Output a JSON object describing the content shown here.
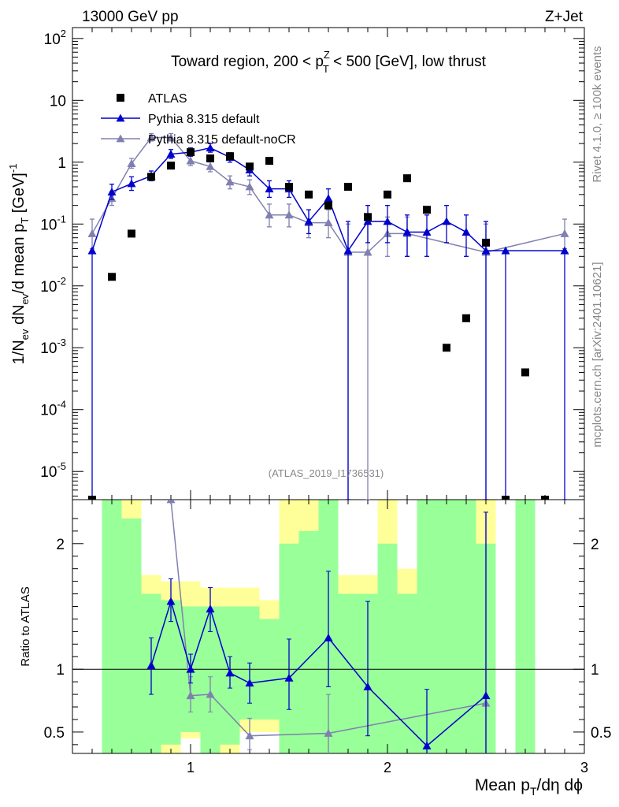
{
  "header": {
    "energy_label": "13000 GeV pp",
    "process_label": "Z+Jet",
    "plot_title": "Toward region, 200 < p_T^Z < 500 [GeV], low thrust",
    "watermark": "(ATLAS_2019_I1736531)",
    "side_rivet": "Rivet 4.1.0, ≥ 100k events",
    "side_mcplots": "mcplots.cern.ch [arXiv:2401.10621]"
  },
  "colors": {
    "data": "#000000",
    "default": "#0000cc",
    "nocr": "#8080b0",
    "band_inner": "#99ff99",
    "band_outer": "#ffff99"
  },
  "chart_data": [
    {
      "type": "scatter",
      "panel": "main",
      "ylabel": "1/N_ev dN_ev/d mean p_T [GeV]^-1",
      "yscale": "log",
      "xlim": [
        0.4,
        3.0
      ],
      "ylim": [
        3.5e-06,
        150
      ],
      "x_ticks": [
        "1",
        "2",
        "3"
      ],
      "y_ticks": [
        "10^-5",
        "10^-4",
        "10^-3",
        "10^-2",
        "10^-1",
        "1",
        "10",
        "10^2"
      ],
      "legend": [
        "ATLAS",
        "Pythia 8.315 default",
        "Pythia 8.315 default-noCR"
      ],
      "series": [
        {
          "name": "ATLAS",
          "style": "markers",
          "points": [
            {
              "x": 0.5,
              "y": 3.5e-06
            },
            {
              "x": 0.6,
              "y": 0.014
            },
            {
              "x": 0.7,
              "y": 0.07
            },
            {
              "x": 0.8,
              "y": 0.58
            },
            {
              "x": 0.9,
              "y": 0.88
            },
            {
              "x": 1.0,
              "y": 1.45
            },
            {
              "x": 1.1,
              "y": 1.15
            },
            {
              "x": 1.2,
              "y": 1.25
            },
            {
              "x": 1.3,
              "y": 0.85
            },
            {
              "x": 1.4,
              "y": 1.05
            },
            {
              "x": 1.5,
              "y": 0.4
            },
            {
              "x": 1.6,
              "y": 0.3
            },
            {
              "x": 1.7,
              "y": 0.2
            },
            {
              "x": 1.8,
              "y": 0.4
            },
            {
              "x": 1.9,
              "y": 0.13
            },
            {
              "x": 2.0,
              "y": 0.3
            },
            {
              "x": 2.1,
              "y": 0.55
            },
            {
              "x": 2.2,
              "y": 0.17
            },
            {
              "x": 2.3,
              "y": 0.001
            },
            {
              "x": 2.4,
              "y": 0.003
            },
            {
              "x": 2.5,
              "y": 0.05
            },
            {
              "x": 2.6,
              "y": 3.5e-06
            },
            {
              "x": 2.7,
              "y": 0.0004
            },
            {
              "x": 2.8,
              "y": 3.5e-06
            }
          ]
        },
        {
          "name": "Pythia 8.315 default",
          "style": "line-triangles",
          "points": [
            {
              "x": 0.5,
              "y": 0.037,
              "lo": 3.5e-06,
              "hi": 0.037
            },
            {
              "x": 0.6,
              "y": 0.33,
              "lo": 0.25,
              "hi": 0.44
            },
            {
              "x": 0.7,
              "y": 0.45,
              "lo": 0.35,
              "hi": 0.58
            },
            {
              "x": 0.8,
              "y": 0.6,
              "lo": 0.5,
              "hi": 0.72
            },
            {
              "x": 0.9,
              "y": 1.35,
              "lo": 1.15,
              "hi": 1.6
            },
            {
              "x": 1.0,
              "y": 1.45,
              "lo": 1.25,
              "hi": 1.7
            },
            {
              "x": 1.1,
              "y": 1.7,
              "lo": 1.45,
              "hi": 2.0
            },
            {
              "x": 1.2,
              "y": 1.2,
              "lo": 1.0,
              "hi": 1.42
            },
            {
              "x": 1.3,
              "y": 0.75,
              "lo": 0.6,
              "hi": 0.93
            },
            {
              "x": 1.4,
              "y": 0.37,
              "lo": 0.27,
              "hi": 0.5
            },
            {
              "x": 1.5,
              "y": 0.37,
              "lo": 0.27,
              "hi": 0.5
            },
            {
              "x": 1.6,
              "y": 0.11,
              "lo": 0.07,
              "hi": 0.17
            },
            {
              "x": 1.7,
              "y": 0.26,
              "lo": 0.18,
              "hi": 0.37
            },
            {
              "x": 1.8,
              "y": 0.037,
              "lo": 3.5e-06,
              "hi": 0.11
            },
            {
              "x": 1.9,
              "y": 0.11,
              "lo": 0.05,
              "hi": 0.2
            },
            {
              "x": 2.0,
              "y": 0.11,
              "lo": 0.05,
              "hi": 0.2
            },
            {
              "x": 2.1,
              "y": 0.074,
              "lo": 0.03,
              "hi": 0.14
            },
            {
              "x": 2.2,
              "y": 0.074,
              "lo": 0.03,
              "hi": 0.14
            },
            {
              "x": 2.3,
              "y": 0.11,
              "lo": 0.05,
              "hi": 0.2
            },
            {
              "x": 2.4,
              "y": 0.074,
              "lo": 0.03,
              "hi": 0.14
            },
            {
              "x": 2.5,
              "y": 0.037,
              "lo": 3.5e-06,
              "hi": 0.11
            },
            {
              "x": 2.6,
              "y": 0.037,
              "lo": 3.5e-06,
              "hi": 0.037
            },
            {
              "x": 2.9,
              "y": 0.037,
              "lo": 3.5e-06,
              "hi": 0.037
            }
          ]
        },
        {
          "name": "Pythia 8.315 default-noCR",
          "style": "line-triangles",
          "points": [
            {
              "x": 0.5,
              "y": 0.07,
              "lo": 0.04,
              "hi": 0.12
            },
            {
              "x": 0.6,
              "y": 0.26,
              "lo": 0.2,
              "hi": 0.34
            },
            {
              "x": 0.7,
              "y": 0.95,
              "lo": 0.8,
              "hi": 1.15
            },
            {
              "x": 0.8,
              "y": 2.5,
              "lo": 2.2,
              "hi": 2.9
            },
            {
              "x": 0.9,
              "y": 2.5,
              "lo": 2.2,
              "hi": 2.9
            },
            {
              "x": 1.0,
              "y": 1.05,
              "lo": 0.88,
              "hi": 1.25
            },
            {
              "x": 1.1,
              "y": 0.85,
              "lo": 0.7,
              "hi": 1.02
            },
            {
              "x": 1.2,
              "y": 0.48,
              "lo": 0.37,
              "hi": 0.6
            },
            {
              "x": 1.3,
              "y": 0.4,
              "lo": 0.3,
              "hi": 0.52
            },
            {
              "x": 1.4,
              "y": 0.14,
              "lo": 0.09,
              "hi": 0.21
            },
            {
              "x": 1.5,
              "y": 0.14,
              "lo": 0.09,
              "hi": 0.21
            },
            {
              "x": 1.6,
              "y": 0.105,
              "lo": 0.06,
              "hi": 0.17
            },
            {
              "x": 1.7,
              "y": 0.105,
              "lo": 0.06,
              "hi": 0.17
            },
            {
              "x": 1.8,
              "y": 0.035,
              "lo": 3.5e-06,
              "hi": 0.1
            },
            {
              "x": 1.9,
              "y": 0.035,
              "lo": 3.5e-06,
              "hi": 0.1
            },
            {
              "x": 2.0,
              "y": 0.07,
              "lo": 0.03,
              "hi": 0.13
            },
            {
              "x": 2.1,
              "y": 0.07,
              "lo": 0.03,
              "hi": 0.13
            },
            {
              "x": 2.5,
              "y": 0.035,
              "lo": 3.5e-06,
              "hi": 0.1
            },
            {
              "x": 2.9,
              "y": 0.07,
              "lo": 0.04,
              "hi": 0.12
            }
          ]
        }
      ]
    },
    {
      "type": "line",
      "panel": "ratio",
      "ylabel": "Ratio to ATLAS",
      "xlabel": "Mean p_T/dη dϕ",
      "xlim": [
        0.4,
        3.0
      ],
      "ylim": [
        0.33,
        2.35
      ],
      "y_ticks": [
        "0.5",
        "1",
        "2"
      ],
      "x_ticks": [
        "1",
        "2",
        "3"
      ],
      "reference": 1,
      "bands": [
        {
          "x0": 0.55,
          "x1": 0.65,
          "inner": [
            0.33,
            2.35
          ],
          "outer": [
            0.33,
            2.35
          ]
        },
        {
          "x0": 0.65,
          "x1": 0.75,
          "inner": [
            0.33,
            2.2
          ],
          "outer": [
            0.33,
            2.35
          ]
        },
        {
          "x0": 0.75,
          "x1": 0.85,
          "inner": [
            0.33,
            1.6
          ],
          "outer": [
            0.33,
            1.75
          ]
        },
        {
          "x0": 0.85,
          "x1": 0.95,
          "inner": [
            0.4,
            1.55
          ],
          "outer": [
            0.33,
            1.7
          ]
        },
        {
          "x0": 0.95,
          "x1": 1.05,
          "inner": [
            0.5,
            1.5
          ],
          "outer": [
            0.45,
            1.7
          ]
        },
        {
          "x0": 1.05,
          "x1": 1.15,
          "inner": [
            0.33,
            1.5
          ],
          "outer": [
            0.33,
            1.65
          ]
        },
        {
          "x0": 1.15,
          "x1": 1.25,
          "inner": [
            0.4,
            1.5
          ],
          "outer": [
            0.33,
            1.65
          ]
        },
        {
          "x0": 1.25,
          "x1": 1.35,
          "inner": [
            0.6,
            1.5
          ],
          "outer": [
            0.5,
            1.65
          ]
        },
        {
          "x0": 1.35,
          "x1": 1.45,
          "inner": [
            0.6,
            1.4
          ],
          "outer": [
            0.5,
            1.55
          ]
        },
        {
          "x0": 1.45,
          "x1": 1.55,
          "inner": [
            0.33,
            2.0
          ],
          "outer": [
            0.33,
            2.35
          ]
        },
        {
          "x0": 1.55,
          "x1": 1.65,
          "inner": [
            0.33,
            2.1
          ],
          "outer": [
            0.33,
            2.35
          ]
        },
        {
          "x0": 1.65,
          "x1": 1.75,
          "inner": [
            0.33,
            2.35
          ],
          "outer": [
            0.33,
            2.35
          ]
        },
        {
          "x0": 1.75,
          "x1": 1.85,
          "inner": [
            0.33,
            1.6
          ],
          "outer": [
            0.33,
            1.75
          ]
        },
        {
          "x0": 1.85,
          "x1": 1.95,
          "inner": [
            0.33,
            1.6
          ],
          "outer": [
            0.33,
            1.75
          ]
        },
        {
          "x0": 1.95,
          "x1": 2.05,
          "inner": [
            0.33,
            2.0
          ],
          "outer": [
            0.33,
            2.35
          ]
        },
        {
          "x0": 2.05,
          "x1": 2.15,
          "inner": [
            0.33,
            1.6
          ],
          "outer": [
            0.33,
            1.8
          ]
        },
        {
          "x0": 2.15,
          "x1": 2.25,
          "inner": [
            0.33,
            2.35
          ],
          "outer": [
            0.33,
            2.35
          ]
        },
        {
          "x0": 2.25,
          "x1": 2.35,
          "inner": [
            0.33,
            2.35
          ],
          "outer": [
            0.33,
            2.35
          ]
        },
        {
          "x0": 2.35,
          "x1": 2.45,
          "inner": [
            0.33,
            2.35
          ],
          "outer": [
            0.33,
            2.35
          ]
        },
        {
          "x0": 2.45,
          "x1": 2.55,
          "inner": [
            0.33,
            2.0
          ],
          "outer": [
            0.33,
            2.35
          ]
        },
        {
          "x0": 2.65,
          "x1": 2.75,
          "inner": [
            0.33,
            2.35
          ],
          "outer": [
            0.33,
            2.35
          ]
        }
      ],
      "series": [
        {
          "name": "Pythia 8.315 default",
          "points": [
            {
              "x": 0.8,
              "y": 1.03,
              "lo": 0.8,
              "hi": 1.25
            },
            {
              "x": 0.9,
              "y": 1.54,
              "lo": 1.38,
              "hi": 1.72
            },
            {
              "x": 1.0,
              "y": 1.0,
              "lo": 0.89,
              "hi": 1.12
            },
            {
              "x": 1.1,
              "y": 1.48,
              "lo": 1.3,
              "hi": 1.65
            },
            {
              "x": 1.2,
              "y": 0.97,
              "lo": 0.85,
              "hi": 1.1
            },
            {
              "x": 1.3,
              "y": 0.89,
              "lo": 0.73,
              "hi": 1.05
            },
            {
              "x": 1.5,
              "y": 0.93,
              "lo": 0.68,
              "hi": 1.24
            },
            {
              "x": 1.7,
              "y": 1.25,
              "lo": 0.86,
              "hi": 1.78
            },
            {
              "x": 1.9,
              "y": 0.86,
              "lo": 0.47,
              "hi": 1.54
            },
            {
              "x": 2.2,
              "y": 0.39,
              "lo": 0.2,
              "hi": 0.84
            },
            {
              "x": 2.5,
              "y": 0.79,
              "lo": 0.2,
              "hi": 2.25
            }
          ]
        },
        {
          "name": "Pythia 8.315 default-noCR",
          "points": [
            {
              "x": 0.9,
              "y": 2.35
            },
            {
              "x": 1.0,
              "y": 0.79,
              "lo": 0.66,
              "hi": 0.94
            },
            {
              "x": 1.1,
              "y": 0.8,
              "lo": 0.66,
              "hi": 0.94
            },
            {
              "x": 1.3,
              "y": 0.47,
              "lo": 0.36,
              "hi": 0.61
            },
            {
              "x": 1.7,
              "y": 0.49,
              "lo": 0.29,
              "hi": 0.8
            },
            {
              "x": 2.5,
              "y": 0.73,
              "lo": 0.2,
              "hi": 2.25
            }
          ]
        }
      ]
    }
  ]
}
